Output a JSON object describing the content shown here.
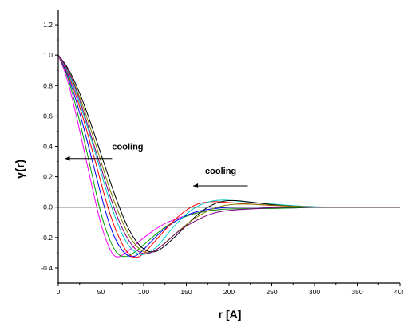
{
  "chart_data": {
    "type": "line",
    "xlabel": "r [A]",
    "ylabel": "γ(r)",
    "xlim": [
      0,
      400
    ],
    "ylim": [
      -0.5,
      1.3
    ],
    "x_ticks": [
      0,
      50,
      100,
      150,
      200,
      250,
      300,
      350,
      400
    ],
    "x_tick_labels": [
      "0",
      "50",
      "100",
      "150",
      "200",
      "250",
      "300",
      "350",
      "400"
    ],
    "y_ticks": [
      -0.4,
      -0.2,
      0.0,
      0.2,
      0.4,
      0.6,
      0.8,
      1.0,
      1.2
    ],
    "y_tick_labels": [
      "-0.4",
      "-0.2",
      "0.0",
      "0.2",
      "0.4",
      "0.6",
      "0.8",
      "1.0",
      "1.2"
    ],
    "reference_line_y": 0.0,
    "grid": false,
    "annotations": [
      {
        "text": "cooling",
        "arrow_from": [
          63,
          0.32
        ],
        "arrow_to": [
          8,
          0.32
        ],
        "text_at": [
          63,
          0.38
        ]
      },
      {
        "text": "cooling",
        "arrow_from": [
          222,
          0.14
        ],
        "arrow_to": [
          158,
          0.14
        ],
        "text_at": [
          172,
          0.22
        ]
      }
    ],
    "series_note": "family of ~40 correlation curves; minima shift from r≈68 to r≈110 with temperature",
    "series": [
      {
        "color": "#ff00ff",
        "x": [
          0,
          10,
          20,
          30,
          40,
          50,
          60,
          68,
          80,
          100,
          120,
          140,
          160,
          180,
          200,
          250,
          300,
          350,
          400
        ],
        "values": [
          1.0,
          0.86,
          0.63,
          0.38,
          0.12,
          -0.12,
          -0.28,
          -0.34,
          -0.3,
          -0.2,
          -0.12,
          -0.07,
          -0.04,
          -0.02,
          -0.01,
          -0.01,
          0.0,
          0.0,
          0.0
        ]
      },
      {
        "color": "#00a000",
        "x": [
          0,
          10,
          20,
          30,
          40,
          50,
          60,
          70,
          82,
          100,
          120,
          140,
          160,
          180,
          200,
          250,
          300,
          350,
          400
        ],
        "values": [
          1.0,
          0.88,
          0.68,
          0.45,
          0.2,
          -0.05,
          -0.22,
          -0.32,
          -0.33,
          -0.25,
          -0.15,
          -0.08,
          -0.04,
          -0.02,
          -0.01,
          -0.01,
          0.0,
          0.0,
          0.0
        ]
      },
      {
        "color": "#0000ff",
        "x": [
          0,
          10,
          20,
          30,
          40,
          50,
          60,
          70,
          80,
          90,
          100,
          120,
          140,
          160,
          180,
          200,
          250,
          300,
          350,
          400
        ],
        "values": [
          1.0,
          0.89,
          0.72,
          0.52,
          0.3,
          0.08,
          -0.12,
          -0.25,
          -0.32,
          -0.33,
          -0.28,
          -0.16,
          -0.08,
          -0.03,
          -0.01,
          0.0,
          0.0,
          0.0,
          0.0,
          0.0
        ]
      },
      {
        "color": "#ff0000",
        "x": [
          0,
          10,
          20,
          30,
          40,
          50,
          60,
          70,
          80,
          90,
          100,
          120,
          140,
          160,
          180,
          200,
          250,
          300,
          350,
          400
        ],
        "values": [
          1.0,
          0.9,
          0.75,
          0.57,
          0.37,
          0.16,
          -0.04,
          -0.19,
          -0.3,
          -0.34,
          -0.31,
          -0.18,
          -0.06,
          0.02,
          0.04,
          0.03,
          0.01,
          0.0,
          0.0,
          0.0
        ]
      },
      {
        "color": "#00cccc",
        "x": [
          0,
          10,
          20,
          30,
          40,
          50,
          60,
          70,
          80,
          90,
          100,
          115,
          130,
          150,
          170,
          190,
          210,
          250,
          300,
          350,
          400
        ],
        "values": [
          1.0,
          0.91,
          0.77,
          0.6,
          0.42,
          0.23,
          0.04,
          -0.12,
          -0.24,
          -0.3,
          -0.32,
          -0.27,
          -0.16,
          -0.04,
          0.03,
          0.05,
          0.04,
          0.02,
          0.0,
          0.0,
          0.0
        ]
      },
      {
        "color": "#000000",
        "x": [
          0,
          10,
          20,
          30,
          40,
          50,
          60,
          70,
          80,
          90,
          100,
          110,
          120,
          140,
          160,
          180,
          200,
          230,
          260,
          300,
          350,
          400
        ],
        "values": [
          1.0,
          0.93,
          0.82,
          0.68,
          0.52,
          0.35,
          0.18,
          0.02,
          -0.12,
          -0.22,
          -0.28,
          -0.3,
          -0.28,
          -0.18,
          -0.06,
          0.02,
          0.05,
          0.03,
          0.01,
          0.0,
          0.0,
          0.0
        ]
      },
      {
        "color": "#808000",
        "x": [
          0,
          10,
          20,
          30,
          40,
          50,
          60,
          70,
          80,
          90,
          100,
          110,
          120,
          140,
          160,
          180,
          200,
          230,
          260,
          300,
          350,
          400
        ],
        "values": [
          1.0,
          0.92,
          0.8,
          0.65,
          0.48,
          0.3,
          0.12,
          -0.03,
          -0.16,
          -0.25,
          -0.3,
          -0.3,
          -0.26,
          -0.16,
          -0.07,
          -0.01,
          0.02,
          0.02,
          0.01,
          0.0,
          0.0,
          0.0
        ]
      },
      {
        "color": "#800080",
        "x": [
          0,
          10,
          20,
          30,
          40,
          50,
          60,
          70,
          80,
          90,
          100,
          110,
          125,
          140,
          160,
          180,
          200,
          230,
          260,
          300,
          350,
          400
        ],
        "values": [
          1.0,
          0.92,
          0.79,
          0.62,
          0.44,
          0.26,
          0.08,
          -0.08,
          -0.2,
          -0.28,
          -0.31,
          -0.3,
          -0.24,
          -0.16,
          -0.09,
          -0.04,
          -0.02,
          -0.01,
          0.0,
          0.0,
          0.0,
          0.0
        ]
      }
    ]
  }
}
